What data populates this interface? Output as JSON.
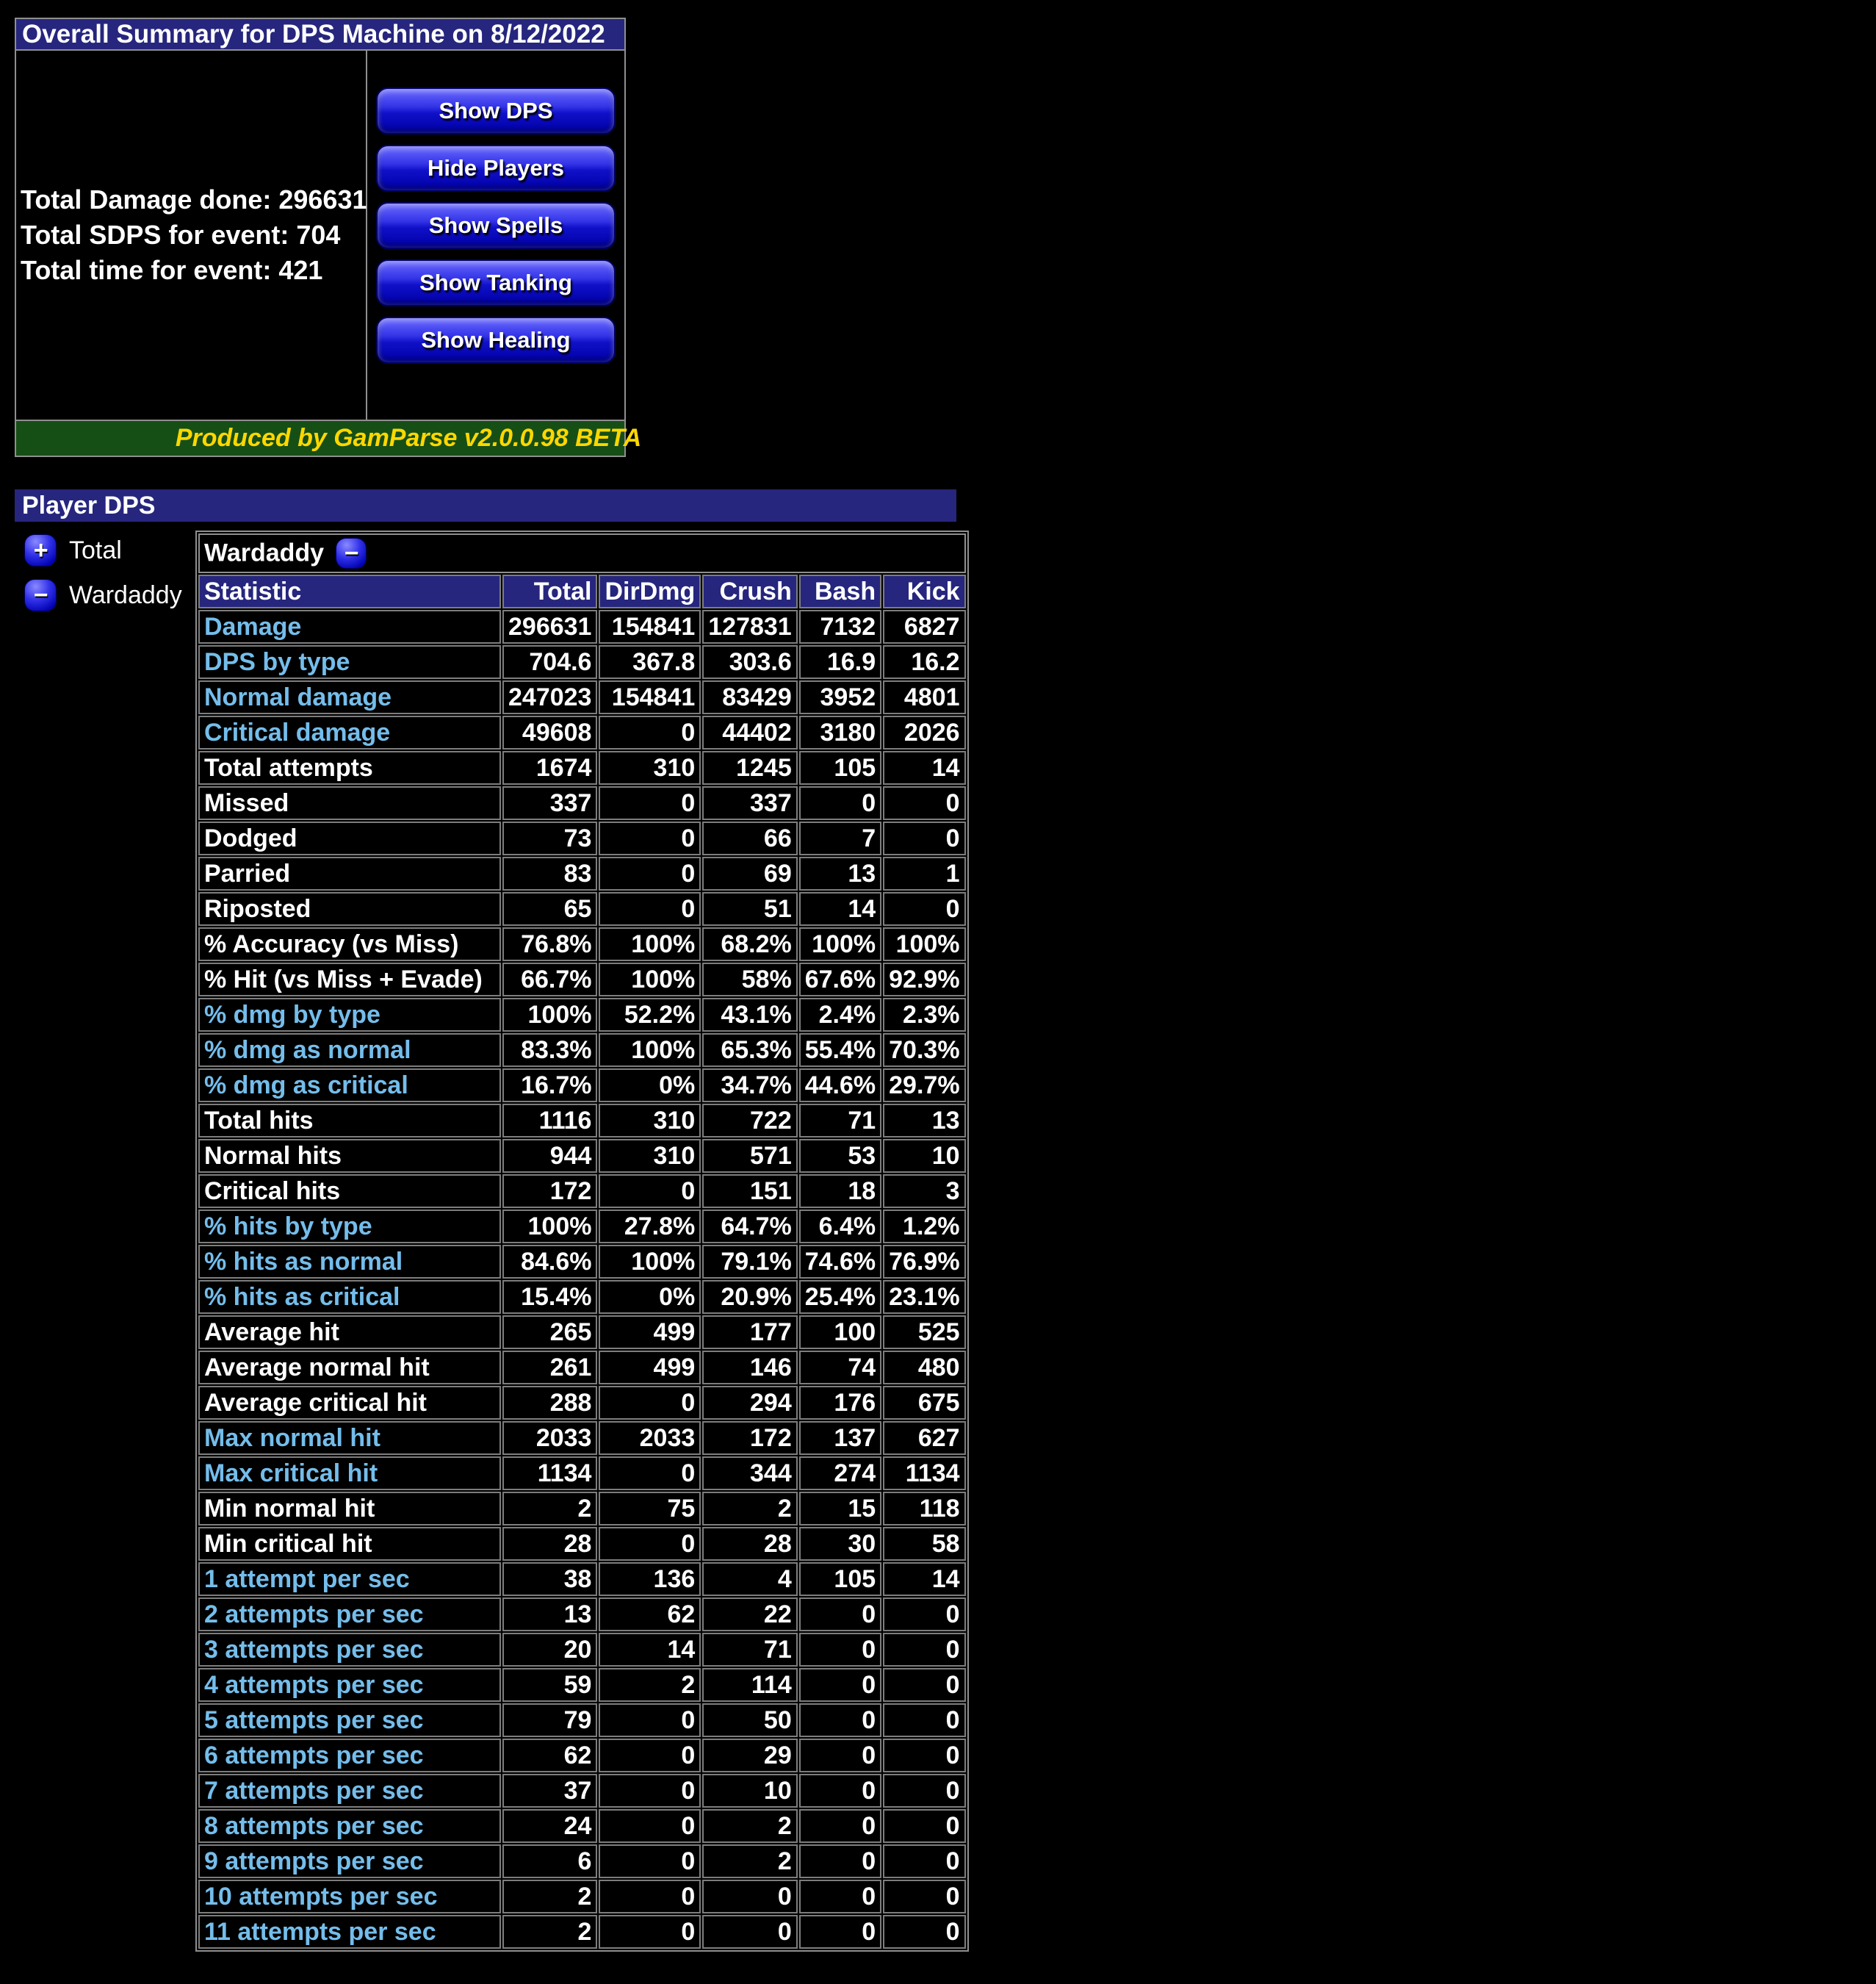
{
  "summary": {
    "title": "Overall Summary for DPS Machine on 8/12/2022",
    "stats": [
      "Total Damage done: 296631",
      "Total SDPS for event: 704",
      "Total time for event: 421"
    ],
    "buttons": [
      "Show DPS",
      "Hide Players",
      "Show Spells",
      "Show Tanking",
      "Show Healing"
    ],
    "footer": "Produced by GamParse v2.0.0.98 BETA"
  },
  "player_dps": {
    "title": "Player DPS",
    "tree": [
      {
        "label": "Total",
        "icon": "plus-icon",
        "glyph": "+"
      },
      {
        "label": "Wardaddy",
        "icon": "minus-icon",
        "glyph": "−"
      }
    ],
    "table": {
      "player": "Wardaddy",
      "collapse_glyph": "−",
      "columns": [
        "Statistic",
        "Total",
        "DirDmg",
        "Crush",
        "Bash",
        "Kick"
      ],
      "rows": [
        {
          "label": "Damage",
          "link": true,
          "values": [
            "296631",
            "154841",
            "127831",
            "7132",
            "6827"
          ]
        },
        {
          "label": "DPS by type",
          "link": true,
          "values": [
            "704.6",
            "367.8",
            "303.6",
            "16.9",
            "16.2"
          ]
        },
        {
          "label": "Normal damage",
          "link": true,
          "values": [
            "247023",
            "154841",
            "83429",
            "3952",
            "4801"
          ]
        },
        {
          "label": "Critical damage",
          "link": true,
          "values": [
            "49608",
            "0",
            "44402",
            "3180",
            "2026"
          ]
        },
        {
          "label": "Total attempts",
          "link": false,
          "values": [
            "1674",
            "310",
            "1245",
            "105",
            "14"
          ]
        },
        {
          "label": "Missed",
          "link": false,
          "values": [
            "337",
            "0",
            "337",
            "0",
            "0"
          ]
        },
        {
          "label": "Dodged",
          "link": false,
          "values": [
            "73",
            "0",
            "66",
            "7",
            "0"
          ]
        },
        {
          "label": "Parried",
          "link": false,
          "values": [
            "83",
            "0",
            "69",
            "13",
            "1"
          ]
        },
        {
          "label": "Riposted",
          "link": false,
          "values": [
            "65",
            "0",
            "51",
            "14",
            "0"
          ]
        },
        {
          "label": "% Accuracy (vs Miss)",
          "link": false,
          "values": [
            "76.8%",
            "100%",
            "68.2%",
            "100%",
            "100%"
          ]
        },
        {
          "label": "% Hit (vs Miss + Evade)",
          "link": false,
          "values": [
            "66.7%",
            "100%",
            "58%",
            "67.6%",
            "92.9%"
          ]
        },
        {
          "label": "% dmg by type",
          "link": true,
          "values": [
            "100%",
            "52.2%",
            "43.1%",
            "2.4%",
            "2.3%"
          ]
        },
        {
          "label": "% dmg as normal",
          "link": true,
          "values": [
            "83.3%",
            "100%",
            "65.3%",
            "55.4%",
            "70.3%"
          ]
        },
        {
          "label": "% dmg as critical",
          "link": true,
          "values": [
            "16.7%",
            "0%",
            "34.7%",
            "44.6%",
            "29.7%"
          ]
        },
        {
          "label": "Total hits",
          "link": false,
          "values": [
            "1116",
            "310",
            "722",
            "71",
            "13"
          ]
        },
        {
          "label": "Normal hits",
          "link": false,
          "values": [
            "944",
            "310",
            "571",
            "53",
            "10"
          ]
        },
        {
          "label": "Critical hits",
          "link": false,
          "values": [
            "172",
            "0",
            "151",
            "18",
            "3"
          ]
        },
        {
          "label": "% hits by type",
          "link": true,
          "values": [
            "100%",
            "27.8%",
            "64.7%",
            "6.4%",
            "1.2%"
          ]
        },
        {
          "label": "% hits as normal",
          "link": true,
          "values": [
            "84.6%",
            "100%",
            "79.1%",
            "74.6%",
            "76.9%"
          ]
        },
        {
          "label": "% hits as critical",
          "link": true,
          "values": [
            "15.4%",
            "0%",
            "20.9%",
            "25.4%",
            "23.1%"
          ]
        },
        {
          "label": "Average hit",
          "link": false,
          "values": [
            "265",
            "499",
            "177",
            "100",
            "525"
          ]
        },
        {
          "label": "Average normal hit",
          "link": false,
          "values": [
            "261",
            "499",
            "146",
            "74",
            "480"
          ]
        },
        {
          "label": "Average critical hit",
          "link": false,
          "values": [
            "288",
            "0",
            "294",
            "176",
            "675"
          ]
        },
        {
          "label": "Max normal hit",
          "link": true,
          "values": [
            "2033",
            "2033",
            "172",
            "137",
            "627"
          ]
        },
        {
          "label": "Max critical hit",
          "link": true,
          "values": [
            "1134",
            "0",
            "344",
            "274",
            "1134"
          ]
        },
        {
          "label": "Min normal hit",
          "link": false,
          "values": [
            "2",
            "75",
            "2",
            "15",
            "118"
          ]
        },
        {
          "label": "Min critical hit",
          "link": false,
          "values": [
            "28",
            "0",
            "28",
            "30",
            "58"
          ]
        },
        {
          "label": "1 attempt per sec",
          "link": true,
          "values": [
            "38",
            "136",
            "4",
            "105",
            "14"
          ]
        },
        {
          "label": "2 attempts per sec",
          "link": true,
          "values": [
            "13",
            "62",
            "22",
            "0",
            "0"
          ]
        },
        {
          "label": "3 attempts per sec",
          "link": true,
          "values": [
            "20",
            "14",
            "71",
            "0",
            "0"
          ]
        },
        {
          "label": "4 attempts per sec",
          "link": true,
          "values": [
            "59",
            "2",
            "114",
            "0",
            "0"
          ]
        },
        {
          "label": "5 attempts per sec",
          "link": true,
          "values": [
            "79",
            "0",
            "50",
            "0",
            "0"
          ]
        },
        {
          "label": "6 attempts per sec",
          "link": true,
          "values": [
            "62",
            "0",
            "29",
            "0",
            "0"
          ]
        },
        {
          "label": "7 attempts per sec",
          "link": true,
          "values": [
            "37",
            "0",
            "10",
            "0",
            "0"
          ]
        },
        {
          "label": "8 attempts per sec",
          "link": true,
          "values": [
            "24",
            "0",
            "2",
            "0",
            "0"
          ]
        },
        {
          "label": "9 attempts per sec",
          "link": true,
          "values": [
            "6",
            "0",
            "2",
            "0",
            "0"
          ]
        },
        {
          "label": "10 attempts per sec",
          "link": true,
          "values": [
            "2",
            "0",
            "0",
            "0",
            "0"
          ]
        },
        {
          "label": "11 attempts per sec",
          "link": true,
          "values": [
            "2",
            "0",
            "0",
            "0",
            "0"
          ]
        }
      ]
    }
  },
  "colors": {
    "header_navy": "#26267e",
    "link_blue": "#74bdeb",
    "footer_green": "#164f16",
    "footer_yellow": "#ffd700",
    "button_blue": "#1010c8",
    "border_gray": "#8f8f8f"
  }
}
